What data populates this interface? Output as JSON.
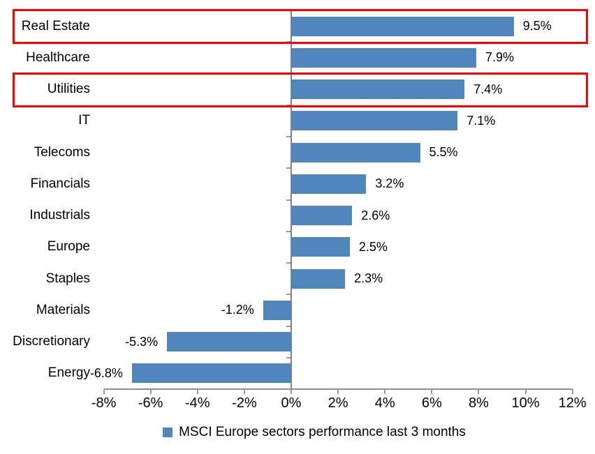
{
  "chart_data": {
    "type": "bar",
    "orientation": "horizontal",
    "title": "",
    "categories": [
      "Real Estate",
      "Healthcare",
      "Utilities",
      "IT",
      "Telecoms",
      "Financials",
      "Industrials",
      "Europe",
      "Staples",
      "Materials",
      "Discretionary",
      "Energy"
    ],
    "values": [
      9.5,
      7.9,
      7.4,
      7.1,
      5.5,
      3.2,
      2.6,
      2.5,
      2.3,
      -1.2,
      -5.3,
      -6.8
    ],
    "data_labels": [
      "9.5%",
      "7.9%",
      "7.4%",
      "7.1%",
      "5.5%",
      "3.2%",
      "2.6%",
      "2.5%",
      "2.3%",
      "-1.2%",
      "-5.3%",
      "-6.8%"
    ],
    "x_ticks": [
      -8,
      -6,
      -4,
      -2,
      0,
      2,
      4,
      6,
      8,
      10,
      12
    ],
    "x_tick_labels": [
      "-8%",
      "-6%",
      "-4%",
      "-2%",
      "0%",
      "2%",
      "4%",
      "6%",
      "8%",
      "10%",
      "12%"
    ],
    "xlim": [
      -8,
      12
    ],
    "grid": false,
    "legend": "MSCI Europe sectors performance last 3 months",
    "legend_position": "bottom",
    "bar_color": "#5086BC",
    "axis_color": "#8F8F8F",
    "highlight_color": "#FF0000",
    "highlighted_categories": [
      "Real Estate",
      "Utilities"
    ]
  }
}
